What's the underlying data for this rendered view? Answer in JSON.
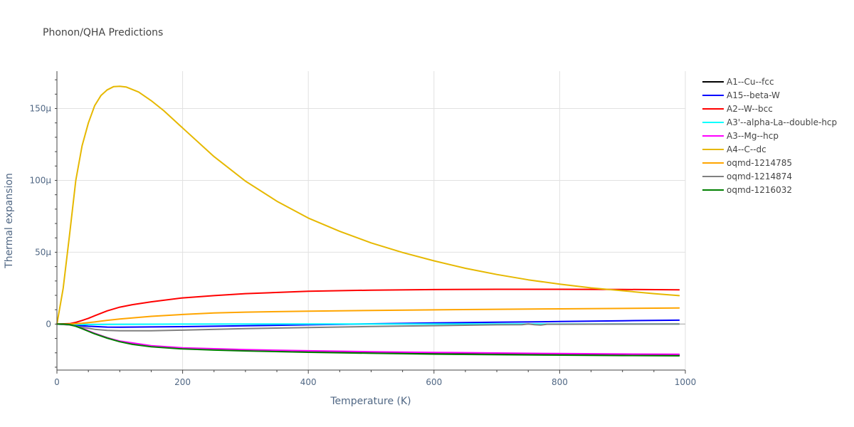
{
  "chart_data": {
    "type": "line",
    "title": "Phonon/QHA Predictions",
    "xlabel": "Temperature (K)",
    "ylabel": "Thermal expansion",
    "xlim": [
      0,
      1000
    ],
    "ylim": [
      -3.2e-05,
      0.000176
    ],
    "x_ticks": [
      0,
      200,
      400,
      600,
      800,
      1000
    ],
    "x_tick_labels": [
      "0",
      "200",
      "400",
      "600",
      "800",
      "1000"
    ],
    "y_ticks": [
      0,
      5e-05,
      0.0001,
      0.00015
    ],
    "y_tick_labels": [
      "0",
      "50μ",
      "100μ",
      "150μ"
    ],
    "grid": true,
    "legend_position": "right",
    "series": [
      {
        "name": "A1--Cu--fcc",
        "color": "#000000",
        "x": [
          0,
          10,
          20,
          30,
          40,
          50,
          60,
          80,
          100,
          120,
          150,
          200,
          250,
          300,
          400,
          500,
          600,
          700,
          800,
          900,
          990
        ],
        "y": [
          0,
          0,
          -2e-07,
          -1.2e-06,
          -3e-06,
          -4.8e-06,
          -6.5e-06,
          -9.5e-06,
          -1.2e-05,
          -1.38e-05,
          -1.55e-05,
          -1.7e-05,
          -1.78e-05,
          -1.84e-05,
          -1.93e-05,
          -2e-05,
          -2.06e-05,
          -2.1e-05,
          -2.13e-05,
          -2.16e-05,
          -2.18e-05
        ]
      },
      {
        "name": "A15--beta-W",
        "color": "#0000ff",
        "x": [
          0,
          20,
          50,
          80,
          100,
          200,
          300,
          400,
          500,
          600,
          700,
          800,
          900,
          990
        ],
        "y": [
          0,
          -5e-07,
          -1.5e-06,
          -2.1e-06,
          -2.2e-06,
          -1.8e-06,
          -1.2e-06,
          -5e-07,
          2e-07,
          8e-07,
          1.3e-06,
          1.8e-06,
          2.3e-06,
          2.7e-06
        ]
      },
      {
        "name": "A2--W--bcc",
        "color": "#ff0000",
        "x": [
          0,
          20,
          30,
          40,
          50,
          60,
          80,
          100,
          120,
          150,
          200,
          250,
          300,
          400,
          500,
          600,
          700,
          800,
          900,
          990
        ],
        "y": [
          0,
          3e-07,
          1.2e-06,
          2.5e-06,
          4e-06,
          5.8e-06,
          9.2e-06,
          1.18e-05,
          1.35e-05,
          1.55e-05,
          1.82e-05,
          1.98e-05,
          2.12e-05,
          2.28e-05,
          2.36e-05,
          2.4e-05,
          2.42e-05,
          2.42e-05,
          2.41e-05,
          2.38e-05
        ]
      },
      {
        "name": "A3'--alpha-La--double-hcp",
        "color": "#00ffff",
        "x": [
          0,
          50,
          100,
          200,
          400,
          600,
          800,
          990
        ],
        "y": [
          0,
          -3e-07,
          -2e-07,
          0,
          1e-07,
          1e-07,
          1e-07,
          1e-07
        ]
      },
      {
        "name": "A3--Mg--hcp",
        "color": "#ff00ff",
        "x": [
          0,
          20,
          40,
          60,
          80,
          100,
          150,
          200,
          300,
          400,
          500,
          600,
          700,
          800,
          900,
          990
        ],
        "y": [
          0,
          -2e-07,
          -2.8e-06,
          -6.5e-06,
          -9.6e-06,
          -1.18e-05,
          -1.5e-05,
          -1.65e-05,
          -1.78e-05,
          -1.86e-05,
          -1.92e-05,
          -1.97e-05,
          -2.01e-05,
          -2.05e-05,
          -2.08e-05,
          -2.1e-05
        ]
      },
      {
        "name": "A4--C--dc",
        "color": "#e6b800",
        "x": [
          0,
          10,
          20,
          30,
          40,
          50,
          60,
          70,
          80,
          90,
          100,
          110,
          130,
          150,
          170,
          200,
          250,
          300,
          350,
          400,
          450,
          500,
          550,
          600,
          650,
          700,
          750,
          800,
          850,
          900,
          950,
          990
        ],
        "y": [
          0,
          2.5e-05,
          6.2e-05,
          0.0001,
          0.000124,
          0.00014,
          0.000152,
          0.000159,
          0.000163,
          0.0001652,
          0.0001655,
          0.000165,
          0.0001615,
          0.0001555,
          0.0001485,
          0.0001365,
          0.0001165,
          9.95e-05,
          8.55e-05,
          7.38e-05,
          6.45e-05,
          5.65e-05,
          4.98e-05,
          4.4e-05,
          3.88e-05,
          3.45e-05,
          3.08e-05,
          2.78e-05,
          2.52e-05,
          2.32e-05,
          2.12e-05,
          1.98e-05
        ]
      },
      {
        "name": "oqmd-1214785",
        "color": "#ffa500",
        "x": [
          0,
          20,
          40,
          60,
          80,
          100,
          150,
          200,
          250,
          300,
          400,
          500,
          600,
          700,
          800,
          900,
          990
        ],
        "y": [
          0,
          1e-07,
          6e-07,
          1.5e-06,
          2.6e-06,
          3.5e-06,
          5.4e-06,
          6.7e-06,
          7.7e-06,
          8.3e-06,
          9e-06,
          9.5e-06,
          9.9e-06,
          1.03e-05,
          1.06e-05,
          1.09e-05,
          1.12e-05
        ]
      },
      {
        "name": "oqmd-1214874",
        "color": "#808080",
        "x": [
          0,
          20,
          40,
          60,
          80,
          100,
          150,
          200,
          300,
          400,
          500,
          600,
          700,
          740,
          750,
          760,
          770,
          780,
          800,
          900,
          990
        ],
        "y": [
          0,
          -6e-07,
          -2.2e-06,
          -3.6e-06,
          -4.4e-06,
          -4.6e-06,
          -4.6e-06,
          -4.2e-06,
          -3.2e-06,
          -2.4e-06,
          -1.7e-06,
          -1.1e-06,
          -5e-07,
          -4e-07,
          1e-07,
          -4e-07,
          -7e-07,
          -1e-07,
          -1e-07,
          0,
          1e-07
        ]
      },
      {
        "name": "oqmd-1216032",
        "color": "#008000",
        "x": [
          0,
          10,
          20,
          30,
          40,
          50,
          60,
          80,
          100,
          120,
          150,
          200,
          250,
          300,
          400,
          500,
          600,
          700,
          800,
          900,
          990
        ],
        "y": [
          0,
          0,
          -3e-07,
          -1.5e-06,
          -3.2e-06,
          -5e-06,
          -6.8e-06,
          -9.8e-06,
          -1.23e-05,
          -1.41e-05,
          -1.58e-05,
          -1.73e-05,
          -1.81e-05,
          -1.87e-05,
          -1.96e-05,
          -2.03e-05,
          -2.09e-05,
          -2.13e-05,
          -2.16e-05,
          -2.19e-05,
          -2.21e-05
        ]
      }
    ]
  }
}
